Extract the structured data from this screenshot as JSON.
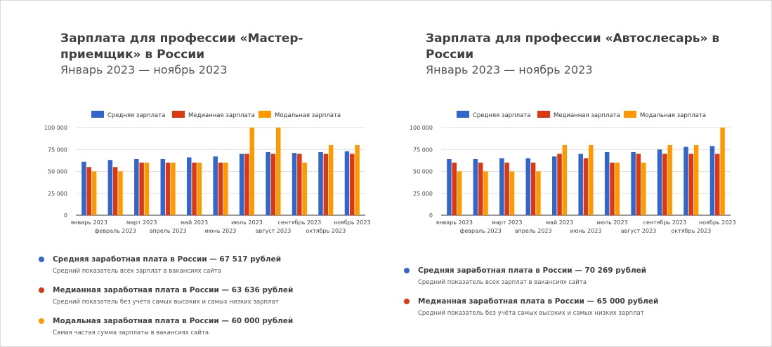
{
  "colors": {
    "mean": "#3366cc",
    "median": "#dc3912",
    "mode": "#ff9900"
  },
  "legend": [
    "Средняя зарплата",
    "Медианная зарплата",
    "Модальная зарплата"
  ],
  "panels": [
    {
      "title": "Зарплата для профессии «Мастер-приемщик» в России",
      "subtitle": "Январь 2023 — ноябрь 2023",
      "stats": [
        {
          "color": "#3366cc",
          "title": "Средняя заработная плата в России — 67 517 рублей",
          "desc": "Средний показатель всех зарплат в вакансиях сайта"
        },
        {
          "color": "#dc3912",
          "title": "Медианная заработная плата в России — 63 636 рублей",
          "desc": "Средний показатель без учёта самых высоких и самых низких зарплат"
        },
        {
          "color": "#ff9900",
          "title": "Модальная заработная плата в России — 60 000 рублей",
          "desc": "Самая частая сумма зарплаты в вакансиях сайта"
        }
      ]
    },
    {
      "title": "Зарплата для профессии «Автослесарь» в России",
      "subtitle": "Январь 2023 — ноябрь 2023",
      "stats": [
        {
          "color": "#3366cc",
          "title": "Средняя заработная плата в России — 70 269 рублей",
          "desc": "Средний показатель всех зарплат в вакансиях сайта"
        },
        {
          "color": "#dc3912",
          "title": "Медианная заработная плата в России — 65 000 рублей",
          "desc": "Средний показатель без учёта самых высоких и самых низких зарплат"
        }
      ]
    }
  ],
  "chart_data": [
    {
      "type": "bar",
      "title": "Зарплата для профессии «Мастер-приемщик» в России",
      "categories": [
        "январь 2023",
        "февраль 2023",
        "март 2023",
        "апрель 2023",
        "май 2023",
        "июнь 2023",
        "июль 2023",
        "август 2023",
        "сентябрь 2023",
        "октябрь 2023",
        "ноябрь 2023"
      ],
      "series": [
        {
          "name": "Средняя зарплата",
          "values": [
            61000,
            63000,
            64000,
            64000,
            66000,
            67000,
            70000,
            72000,
            71000,
            72000,
            73000
          ]
        },
        {
          "name": "Медианная зарплата",
          "values": [
            55000,
            55000,
            60000,
            60000,
            60000,
            60000,
            70000,
            70000,
            70000,
            70000,
            70000
          ]
        },
        {
          "name": "Модальная зарплата",
          "values": [
            50000,
            50000,
            60000,
            60000,
            60000,
            60000,
            100000,
            100000,
            60000,
            80000,
            80000
          ]
        }
      ],
      "ylim": [
        0,
        100000
      ],
      "yticks": [
        "0",
        "25 000",
        "50 000",
        "75 000",
        "100 000"
      ],
      "legend_position": "top"
    },
    {
      "type": "bar",
      "title": "Зарплата для профессии «Автослесарь» в России",
      "categories": [
        "январь 2023",
        "февраль 2023",
        "март 2023",
        "апрель 2023",
        "май 2023",
        "июнь 2023",
        "июль 2023",
        "август 2023",
        "сентябрь 2023",
        "октябрь 2023",
        "ноябрь 2023"
      ],
      "series": [
        {
          "name": "Средняя зарплата",
          "values": [
            64000,
            64000,
            65000,
            65000,
            67000,
            70000,
            72000,
            72000,
            75000,
            78000,
            79000
          ]
        },
        {
          "name": "Медианная зарплата",
          "values": [
            60000,
            60000,
            60000,
            60000,
            70000,
            65000,
            60000,
            70000,
            70000,
            70000,
            70000
          ]
        },
        {
          "name": "Модальная зарплата",
          "values": [
            50000,
            50000,
            50000,
            50000,
            80000,
            80000,
            60000,
            60000,
            80000,
            80000,
            100000
          ]
        }
      ],
      "ylim": [
        0,
        100000
      ],
      "yticks": [
        "0",
        "25 000",
        "50 000",
        "75 000",
        "100 000"
      ],
      "legend_position": "top"
    }
  ]
}
